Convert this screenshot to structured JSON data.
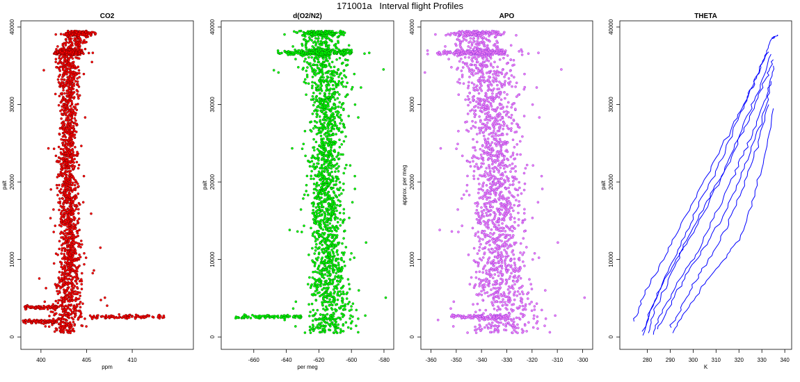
{
  "page_title": "171001a   Interval flight Profiles",
  "chart_data": [
    {
      "type": "scatter",
      "title": "CO2",
      "xlabel": "ppm",
      "ylabel": "palt",
      "xlim": [
        397.8,
        416.7
      ],
      "ylim": [
        -1600,
        40800
      ],
      "xticks": [
        400,
        405,
        410
      ],
      "yticks": [
        0,
        10000,
        20000,
        30000,
        40000
      ],
      "color": "#ff0000",
      "edge_color": "#5a0000",
      "profile": [
        {
          "y": 500,
          "center": 402.6,
          "spread": 1.2
        },
        {
          "y": 3000,
          "center": 402.9,
          "spread": 1.6
        },
        {
          "y": 6000,
          "center": 403.1,
          "spread": 1.3
        },
        {
          "y": 10000,
          "center": 403.2,
          "spread": 1.0
        },
        {
          "y": 20000,
          "center": 402.9,
          "spread": 0.9
        },
        {
          "y": 30000,
          "center": 403.0,
          "spread": 0.9
        },
        {
          "y": 36500,
          "center": 403.1,
          "spread": 1.2
        },
        {
          "y": 39300,
          "center": 404.2,
          "spread": 1.1
        }
      ],
      "features": [
        {
          "y": 2600,
          "x_from": 405.5,
          "x_to": 413.5
        },
        {
          "y": 3800,
          "x_from": 398.2,
          "x_to": 402.0
        },
        {
          "y": 2000,
          "x_from": 398.0,
          "x_to": 401.5
        },
        {
          "y": 36700,
          "x_from": 401.5,
          "x_to": 404.5
        }
      ]
    },
    {
      "type": "scatter",
      "title": "d(O2/N2)",
      "xlabel": "per meg",
      "ylabel": "palt",
      "xlim": [
        -680,
        -574
      ],
      "ylim": [
        -1600,
        40800
      ],
      "xticks": [
        -660,
        -640,
        -620,
        -600,
        -580
      ],
      "yticks": [
        0,
        10000,
        20000,
        30000,
        40000
      ],
      "color": "#00ff00",
      "edge_color": "#005a00",
      "profile": [
        {
          "y": 500,
          "center": -615,
          "spread": 12
        },
        {
          "y": 3000,
          "center": -612,
          "spread": 13
        },
        {
          "y": 10000,
          "center": -614,
          "spread": 9
        },
        {
          "y": 20000,
          "center": -616,
          "spread": 9
        },
        {
          "y": 30000,
          "center": -614,
          "spread": 9
        },
        {
          "y": 36500,
          "center": -618,
          "spread": 14
        },
        {
          "y": 39300,
          "center": -618,
          "spread": 10
        }
      ],
      "features": [
        {
          "y": 2600,
          "x_from": -672,
          "x_to": -630
        },
        {
          "y": 36700,
          "x_from": -645,
          "x_to": -600
        }
      ]
    },
    {
      "type": "scatter",
      "title": "APO",
      "xlabel": "",
      "ylabel": "approx. per meg",
      "xlim": [
        -364,
        -296
      ],
      "ylim": [
        -1600,
        40800
      ],
      "xticks": [
        -360,
        -350,
        -340,
        -330,
        -320,
        -310,
        -300
      ],
      "yticks": [
        0,
        10000,
        20000,
        30000,
        40000
      ],
      "color": "#ee82ee",
      "edge_color": "#8a2be2",
      "profile": [
        {
          "y": 500,
          "center": -332,
          "spread": 12
        },
        {
          "y": 3000,
          "center": -330,
          "spread": 12
        },
        {
          "y": 10000,
          "center": -333,
          "spread": 9
        },
        {
          "y": 20000,
          "center": -334,
          "spread": 9
        },
        {
          "y": 30000,
          "center": -336,
          "spread": 9
        },
        {
          "y": 36500,
          "center": -340,
          "spread": 11
        },
        {
          "y": 39300,
          "center": -342,
          "spread": 7
        }
      ],
      "features": [
        {
          "y": 36700,
          "x_from": -358,
          "x_to": -330
        },
        {
          "y": 2600,
          "x_from": -352,
          "x_to": -330
        }
      ]
    },
    {
      "type": "line",
      "title": "THETA",
      "xlabel": "K",
      "ylabel": "palt",
      "xlim": [
        268,
        343
      ],
      "ylim": [
        -1600,
        40800
      ],
      "xticks": [
        280,
        290,
        300,
        310,
        320,
        330,
        340
      ],
      "yticks": [
        0,
        10000,
        20000,
        30000,
        40000
      ],
      "color": "#0000ff",
      "series": [
        {
          "x": [
            274,
            278,
            285,
            292,
            300,
            308,
            316,
            322,
            327,
            331,
            334,
            337
          ],
          "y": [
            2000,
            5000,
            9000,
            13000,
            17500,
            22000,
            26500,
            30000,
            33000,
            36000,
            38500,
            39000
          ]
        },
        {
          "x": [
            278,
            283,
            290,
            297,
            304,
            312,
            318,
            324,
            329,
            333
          ],
          "y": [
            200,
            4500,
            9000,
            13500,
            18000,
            22500,
            27000,
            31000,
            34500,
            36800
          ]
        },
        {
          "x": [
            280,
            284,
            291,
            298,
            306,
            314,
            321,
            327,
            332,
            335
          ],
          "y": [
            500,
            4000,
            8500,
            13000,
            17500,
            21500,
            26000,
            30000,
            33500,
            35800
          ]
        },
        {
          "x": [
            282,
            287,
            294,
            302,
            310,
            318,
            324,
            330,
            334
          ],
          "y": [
            300,
            3500,
            7500,
            11000,
            16000,
            21000,
            25000,
            29500,
            33000
          ]
        },
        {
          "x": [
            285,
            290,
            297,
            305,
            312,
            319,
            325,
            330,
            333,
            335
          ],
          "y": [
            1000,
            4200,
            8000,
            11500,
            15000,
            19500,
            24000,
            28000,
            31500,
            35000
          ]
        },
        {
          "x": [
            290,
            295,
            301,
            308,
            315,
            322,
            328,
            333
          ],
          "y": [
            1200,
            3800,
            7200,
            10500,
            14500,
            19500,
            24500,
            30000
          ]
        },
        {
          "x": [
            291,
            296,
            304,
            312,
            320,
            326,
            331,
            335
          ],
          "y": [
            500,
            3000,
            6500,
            9500,
            12500,
            17500,
            23000,
            29500
          ]
        },
        {
          "x": [
            278,
            285,
            293,
            301,
            309,
            316,
            323,
            329,
            334
          ],
          "y": [
            700,
            6000,
            10000,
            14000,
            18500,
            23000,
            28000,
            32000,
            36500
          ]
        }
      ]
    }
  ]
}
